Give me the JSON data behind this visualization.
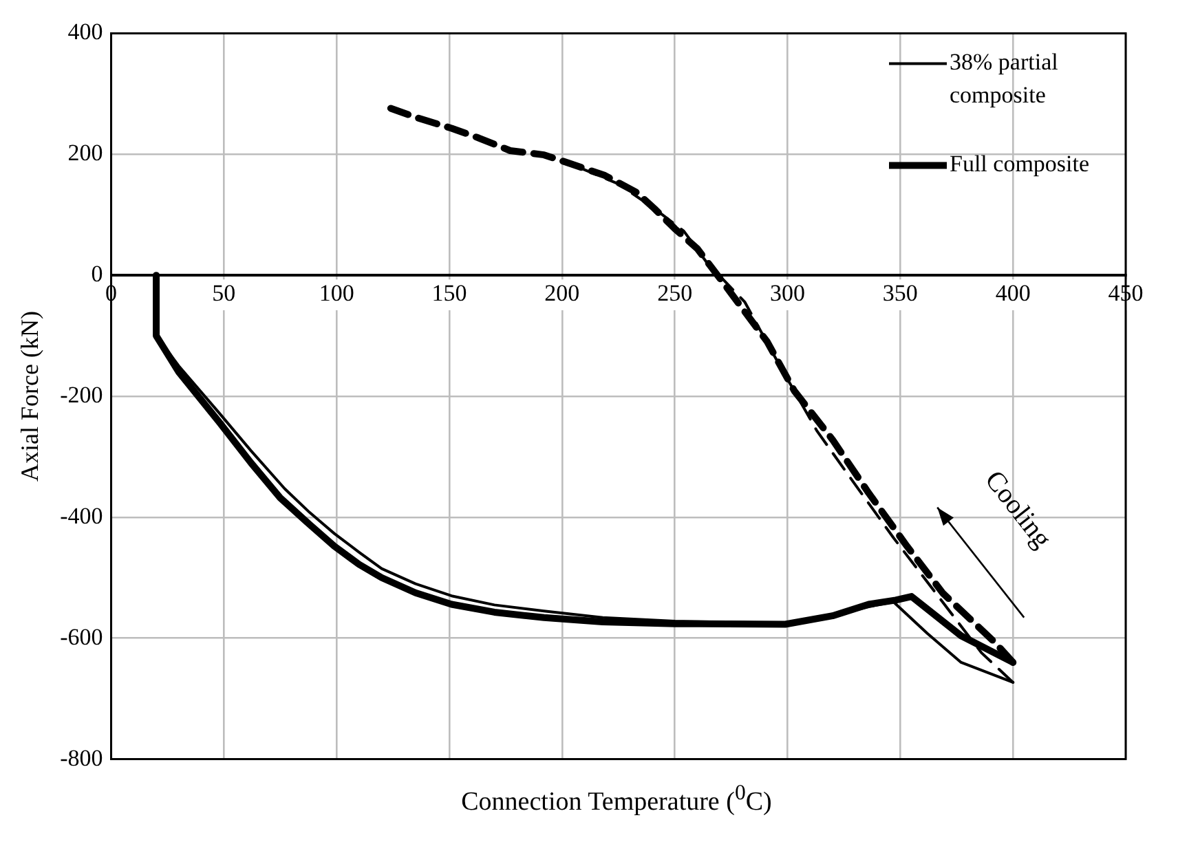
{
  "chart_data": {
    "type": "line",
    "xlabel": "Connection Temperature ($^{0}$C)",
    "ylabel": "Axial Force (kN)",
    "xlim": [
      0,
      450
    ],
    "xticks": [
      0,
      50,
      100,
      150,
      200,
      250,
      300,
      350,
      400,
      450
    ],
    "ylim": [
      -800,
      400
    ],
    "yticks": [
      -800,
      -600,
      -400,
      -200,
      0,
      200,
      400
    ],
    "grid": true,
    "legend": "top right",
    "marker": "none",
    "series": [
      {
        "name": "38% partial composite",
        "color": "#000000",
        "line_style": "solid",
        "x": [
          20,
          20,
          30,
          48,
          62,
          77,
          88,
          99,
          110,
          120,
          135,
          151,
          170,
          192,
          218,
          250,
          299,
          320,
          336,
          347,
          362,
          377,
          400
        ],
        "values": [
          0,
          -99,
          -150,
          -228,
          -290,
          -353,
          -392,
          -427,
          -458,
          -485,
          -510,
          -530,
          -545,
          -555,
          -566,
          -572,
          -575,
          -563,
          -548,
          -540,
          -592,
          -640,
          -673
        ]
      },
      {
        "name": "Full composite",
        "color": "#000000",
        "line_style": "solid",
        "x": [
          20,
          20,
          30,
          48,
          62,
          75,
          88,
          99,
          110,
          120,
          135,
          151,
          170,
          192,
          218,
          250,
          299,
          320,
          336,
          348,
          355,
          377,
          400
        ],
        "values": [
          0,
          -100,
          -160,
          -243,
          -310,
          -368,
          -412,
          -448,
          -478,
          -500,
          -525,
          -544,
          -557,
          -566,
          -573,
          -576,
          -577,
          -563,
          -544,
          -537,
          -531,
          -596,
          -640
        ]
      },
      {
        "color": "#000000",
        "line_style": "dashed",
        "x": [
          400,
          386,
          347,
          330,
          313,
          295,
          281,
          264,
          254,
          241,
          225,
          200
        ],
        "values": [
          -673,
          -624,
          -434,
          -346,
          -257,
          -139,
          -44,
          22,
          73,
          110,
          151,
          190
        ]
      },
      {
        "color": "#000000",
        "line_style": "dashed",
        "x": [
          400,
          392,
          369,
          353,
          336,
          320,
          303,
          291,
          272,
          260,
          250,
          241,
          233,
          219,
          204,
          192,
          177,
          163,
          151,
          136,
          124
        ],
        "values": [
          -640,
          -607,
          -526,
          -448,
          -360,
          -272,
          -191,
          -110,
          -15,
          44,
          77,
          110,
          137,
          165,
          184,
          199,
          206,
          227,
          243,
          260,
          276
        ]
      }
    ],
    "annotations": [
      "Cooling"
    ]
  }
}
